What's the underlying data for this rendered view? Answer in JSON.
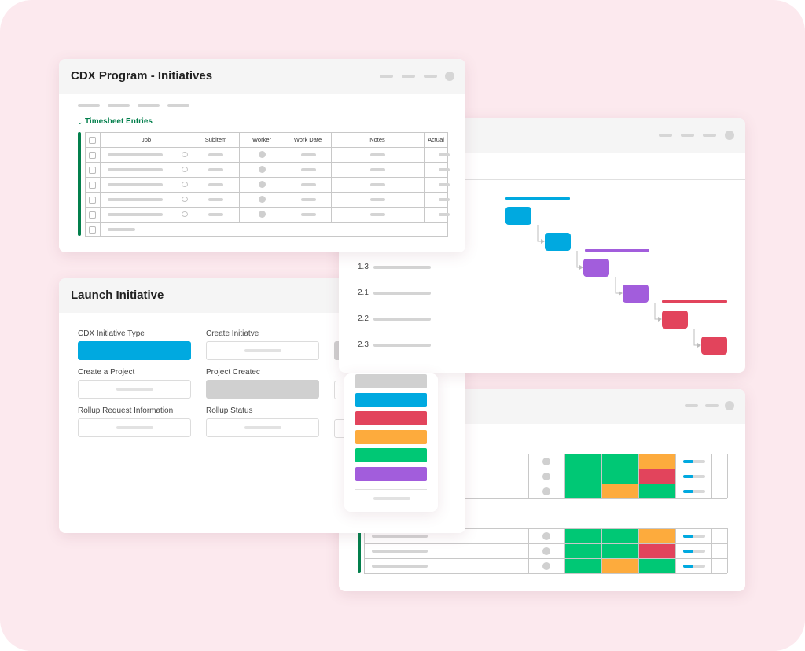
{
  "panels": {
    "initiatives": {
      "title": "CDX Program - Initiatives",
      "group": "Timesheet Entries",
      "columns": [
        "Job",
        "Subitem",
        "Worker",
        "Work Date",
        "Notes",
        "Actual"
      ]
    },
    "launch": {
      "title": "Launch Initiative",
      "fields": [
        "CDX Initiative Type",
        "Create Initiatve",
        "Create a Project",
        "Project Createc",
        "Rollup Request Information",
        "Rollup Status"
      ]
    },
    "gantt": {
      "rows": [
        "1.3",
        "2.1",
        "2.2",
        "2.3"
      ]
    }
  }
}
